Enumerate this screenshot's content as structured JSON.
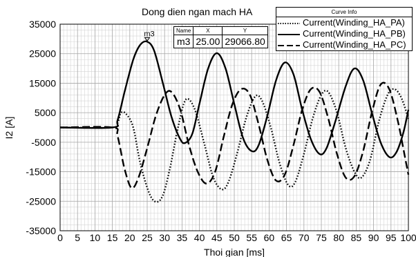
{
  "chart_data": {
    "type": "line",
    "title": "Dong dien ngan mach HA",
    "xlabel": "Thoi gian [ms]",
    "ylabel": "I2 [A]",
    "xlim": [
      0,
      100
    ],
    "ylim": [
      -35000,
      35000
    ],
    "x_ticks": [
      "0",
      "5",
      "10",
      "15",
      "20",
      "25",
      "30",
      "35",
      "40",
      "45",
      "50",
      "55",
      "60",
      "65",
      "70",
      "75",
      "80",
      "85",
      "90",
      "95",
      "100"
    ],
    "y_ticks": [
      "35000",
      "25000",
      "15000",
      "5000",
      "-5000",
      "-15000",
      "-25000",
      "-35000"
    ],
    "grid": true,
    "legend": {
      "title": "Curve Info",
      "placement": "top-right",
      "entries": [
        {
          "label": "Current(Winding_HA_PA)",
          "style": "dotted"
        },
        {
          "label": "Current(Winding_HA_PB)",
          "style": "solid"
        },
        {
          "label": "Current(Winding_HA_PC)",
          "style": "dashed"
        }
      ]
    },
    "marker": {
      "headers": [
        "Name",
        "X",
        "Y"
      ],
      "name": "m3",
      "x": "25.00",
      "y": "29066.80",
      "point_label": "m3"
    },
    "series": [
      {
        "name": "Current(Winding_HA_PA)",
        "style": "dotted",
        "points": [
          [
            0,
            0
          ],
          [
            15,
            0
          ],
          [
            16.5,
            1500
          ],
          [
            17.5,
            5000
          ],
          [
            19,
            4500
          ],
          [
            21,
            0
          ],
          [
            23,
            -12000
          ],
          [
            25.5,
            -22000
          ],
          [
            27.5,
            -25200
          ],
          [
            29.5,
            -23000
          ],
          [
            31.5,
            -14000
          ],
          [
            33.5,
            -2000
          ],
          [
            35.5,
            8000
          ],
          [
            37,
            9500
          ],
          [
            39,
            5000
          ],
          [
            41.5,
            -6000
          ],
          [
            44,
            -17000
          ],
          [
            46.5,
            -21000
          ],
          [
            48.5,
            -18000
          ],
          [
            51,
            -8000
          ],
          [
            53.5,
            3500
          ],
          [
            56,
            10500
          ],
          [
            58,
            9000
          ],
          [
            60.5,
            0
          ],
          [
            63,
            -12000
          ],
          [
            65.5,
            -19500
          ],
          [
            67.5,
            -18500
          ],
          [
            70,
            -9000
          ],
          [
            72.5,
            3000
          ],
          [
            75,
            11000
          ],
          [
            77,
            12000
          ],
          [
            79.5,
            5000
          ],
          [
            82,
            -7000
          ],
          [
            84.5,
            -15000
          ],
          [
            86.5,
            -17000
          ],
          [
            89,
            -11000
          ],
          [
            91.5,
            2000
          ],
          [
            94,
            11000
          ],
          [
            96,
            13000
          ],
          [
            98,
            10000
          ],
          [
            100,
            3000
          ]
        ]
      },
      {
        "name": "Current(Winding_HA_PB)",
        "style": "solid",
        "points": [
          [
            0,
            0
          ],
          [
            15,
            0
          ],
          [
            16.5,
            2500
          ],
          [
            18.5,
            12000
          ],
          [
            21,
            23000
          ],
          [
            23,
            28000
          ],
          [
            25,
            29066.8
          ],
          [
            27,
            26000
          ],
          [
            29.5,
            15000
          ],
          [
            32,
            3500
          ],
          [
            34.5,
            -4000
          ],
          [
            36,
            -5200
          ],
          [
            38,
            -2000
          ],
          [
            40,
            8000
          ],
          [
            42.5,
            20000
          ],
          [
            45,
            25200
          ],
          [
            47.5,
            20000
          ],
          [
            50,
            8000
          ],
          [
            52.5,
            -3500
          ],
          [
            55,
            -8000
          ],
          [
            57,
            -6000
          ],
          [
            59.5,
            4000
          ],
          [
            62,
            16000
          ],
          [
            64.5,
            22000
          ],
          [
            67,
            18000
          ],
          [
            69.5,
            6000
          ],
          [
            72,
            -4000
          ],
          [
            74.5,
            -9000
          ],
          [
            76.5,
            -7000
          ],
          [
            79,
            2000
          ],
          [
            82,
            14000
          ],
          [
            84.5,
            20000
          ],
          [
            87,
            16000
          ],
          [
            89.5,
            5000
          ],
          [
            92,
            -5000
          ],
          [
            94.5,
            -10000
          ],
          [
            96.5,
            -8500
          ],
          [
            98.5,
            -2000
          ],
          [
            100,
            6000
          ]
        ]
      },
      {
        "name": "Current(Winding_HA_PC)",
        "style": "dashed",
        "points": [
          [
            0,
            0
          ],
          [
            15,
            0
          ],
          [
            16.5,
            -3000
          ],
          [
            18.5,
            -14000
          ],
          [
            20.5,
            -20500
          ],
          [
            22.5,
            -17000
          ],
          [
            25,
            -7000
          ],
          [
            27.5,
            4000
          ],
          [
            30,
            11000
          ],
          [
            32,
            12000
          ],
          [
            34.5,
            6000
          ],
          [
            37,
            -6000
          ],
          [
            39.5,
            -15000
          ],
          [
            42,
            -19000
          ],
          [
            44.5,
            -15000
          ],
          [
            47,
            -3000
          ],
          [
            49.5,
            8000
          ],
          [
            52,
            13000
          ],
          [
            54.5,
            11000
          ],
          [
            57,
            1000
          ],
          [
            59.5,
            -11000
          ],
          [
            62,
            -18000
          ],
          [
            64.5,
            -16000
          ],
          [
            67,
            -6000
          ],
          [
            69.5,
            6000
          ],
          [
            72,
            13000
          ],
          [
            74.5,
            12000
          ],
          [
            77,
            3000
          ],
          [
            79.5,
            -9000
          ],
          [
            82,
            -17000
          ],
          [
            84.5,
            -16500
          ],
          [
            87,
            -8000
          ],
          [
            89.5,
            5000
          ],
          [
            92,
            14500
          ],
          [
            94.5,
            13000
          ],
          [
            97,
            2000
          ],
          [
            99,
            -10000
          ],
          [
            100,
            -16000
          ]
        ]
      }
    ]
  }
}
